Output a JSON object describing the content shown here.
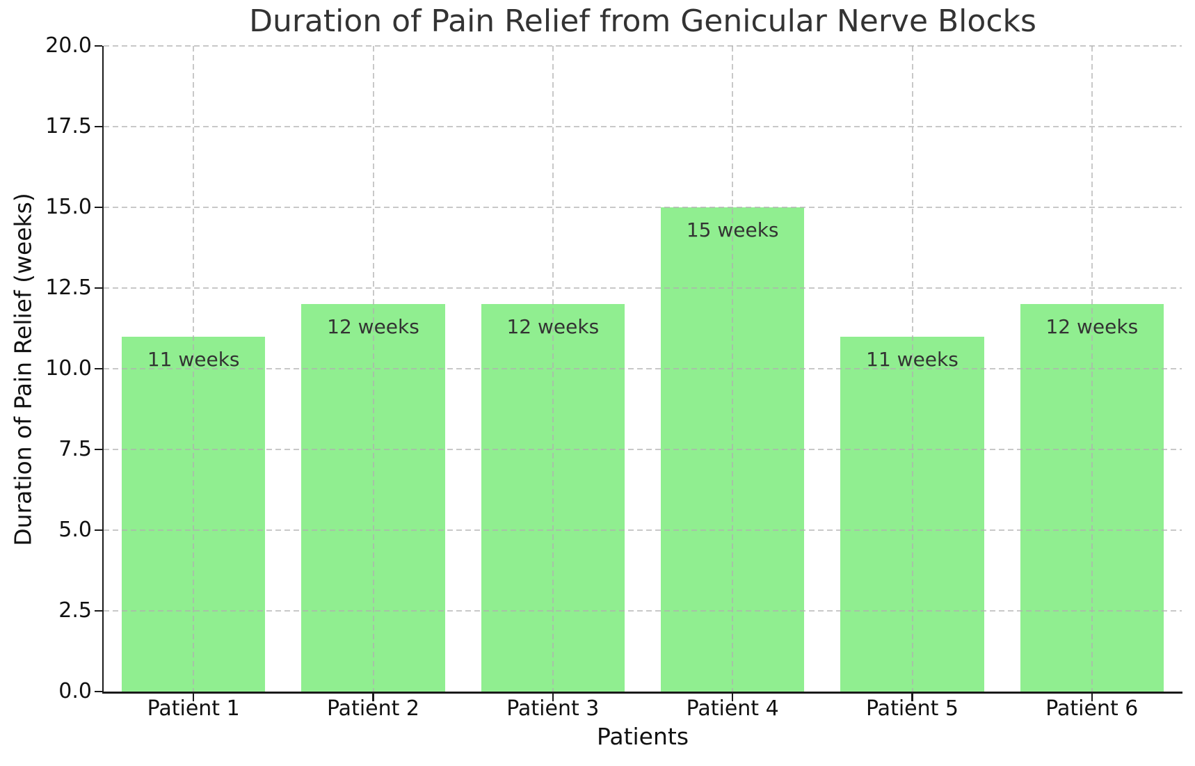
{
  "chart_data": {
    "type": "bar",
    "title": "Duration of Pain Relief from Genicular Nerve Blocks",
    "xlabel": "Patients",
    "ylabel": "Duration of Pain Relief (weeks)",
    "categories": [
      "Patient 1",
      "Patient 2",
      "Patient 3",
      "Patient 4",
      "Patient 5",
      "Patient 6"
    ],
    "values": [
      11,
      12,
      12,
      15,
      11,
      12
    ],
    "bar_labels": [
      "11 weeks",
      "12 weeks",
      "12 weeks",
      "15 weeks",
      "11 weeks",
      "12 weeks"
    ],
    "ylim": [
      0,
      20
    ],
    "yticks": [
      0,
      2.5,
      5,
      7.5,
      10,
      12.5,
      15,
      17.5,
      20
    ],
    "ytick_labels": [
      "0.0",
      "2.5",
      "5.0",
      "7.5",
      "10.0",
      "12.5",
      "15.0",
      "17.5",
      "20.0"
    ],
    "bar_width_fraction": 0.8,
    "grid": true,
    "grid_linestyle": "dashed",
    "legend_position": "none",
    "colors": {
      "background": "#ffffff",
      "bar": "#90EE90",
      "bar_label": "#333333",
      "title": "#333333",
      "axis_label": "#111111",
      "tick_label": "#111111",
      "spine": "#1a1a1a",
      "grid": "#b0b0b0"
    }
  }
}
